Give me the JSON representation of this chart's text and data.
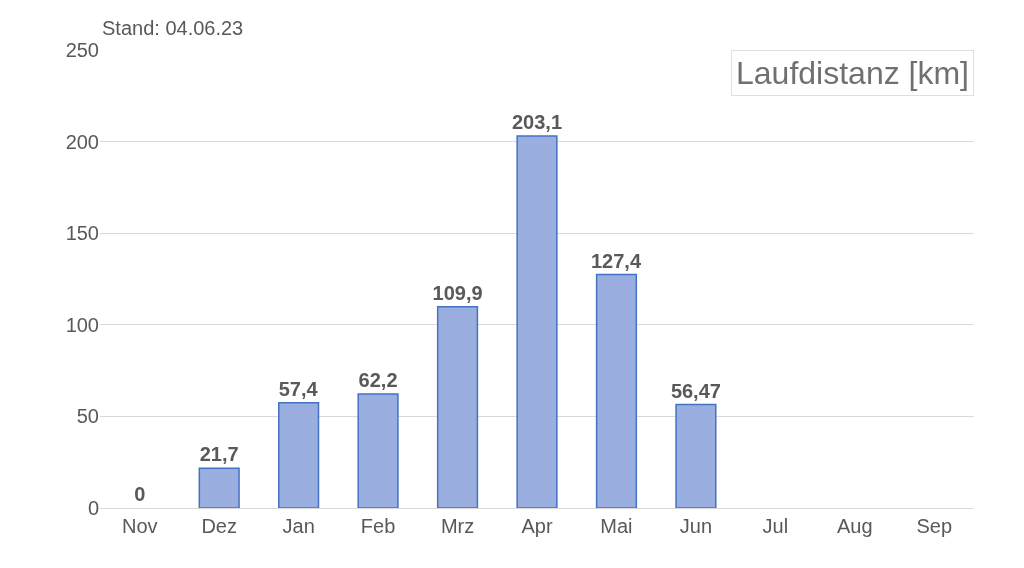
{
  "chart_data": {
    "type": "bar",
    "title": "Laufdistanz [km]",
    "subtitle": "Stand: 04.06.23",
    "categories": [
      "Nov",
      "Dez",
      "Jan",
      "Feb",
      "Mrz",
      "Apr",
      "Mai",
      "Jun",
      "Jul",
      "Aug",
      "Sep"
    ],
    "values": [
      0,
      21.7,
      57.4,
      62.2,
      109.9,
      203.1,
      127.4,
      56.47,
      null,
      null,
      null
    ],
    "value_labels": [
      "0",
      "21,7",
      "57,4",
      "62,2",
      "109,9",
      "203,1",
      "127,4",
      "56,47",
      null,
      null,
      null
    ],
    "color": "#9aaee0",
    "ylim": [
      0,
      250
    ],
    "yticks": [
      0,
      50,
      100,
      150,
      200,
      250
    ],
    "grid": "y",
    "legend": false
  }
}
